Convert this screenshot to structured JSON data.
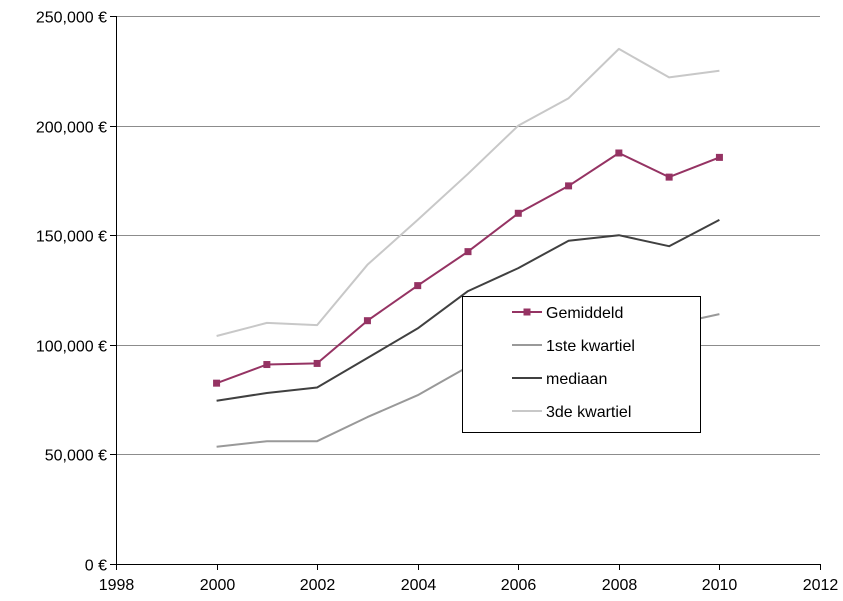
{
  "chart_data": {
    "type": "line",
    "title": "",
    "xlabel": "",
    "ylabel": "",
    "xlim": [
      1998,
      2012
    ],
    "ylim": [
      0,
      250000
    ],
    "x_ticks": [
      1998,
      2000,
      2002,
      2004,
      2006,
      2008,
      2010,
      2012
    ],
    "x_tick_labels": [
      "1998",
      "2000",
      "2002",
      "2004",
      "2006",
      "2008",
      "2010",
      "2012"
    ],
    "y_ticks": [
      0,
      50000,
      100000,
      150000,
      200000,
      250000
    ],
    "y_tick_labels": [
      "0 €",
      "50,000 €",
      "100,000 €",
      "150,000 €",
      "200,000 €",
      "250,000 €"
    ],
    "grid": "horizontal",
    "legend_position": "center-right",
    "x": [
      2000,
      2001,
      2002,
      2003,
      2004,
      2005,
      2006,
      2007,
      2008,
      2009,
      2010
    ],
    "series": [
      {
        "name": "Gemiddeld",
        "color": "#953363",
        "marker": "square",
        "values": [
          82500,
          91000,
          91500,
          111000,
          127000,
          142500,
          160000,
          172500,
          187500,
          176500,
          185500
        ]
      },
      {
        "name": "1ste kwartiel",
        "color": "#999999",
        "marker": "none",
        "values": [
          53500,
          56000,
          56000,
          67000,
          77000,
          90000,
          96000,
          101000,
          107000,
          109000,
          114000
        ]
      },
      {
        "name": "mediaan",
        "color": "#404040",
        "marker": "none",
        "values": [
          74500,
          78000,
          80500,
          94000,
          107500,
          124500,
          135000,
          147500,
          150000,
          145000,
          157000
        ]
      },
      {
        "name": "3de kwartiel",
        "color": "#c8c8c8",
        "marker": "none",
        "values": [
          104000,
          110000,
          109000,
          136500,
          157000,
          178000,
          200000,
          212500,
          235000,
          222000,
          225000
        ]
      }
    ]
  }
}
